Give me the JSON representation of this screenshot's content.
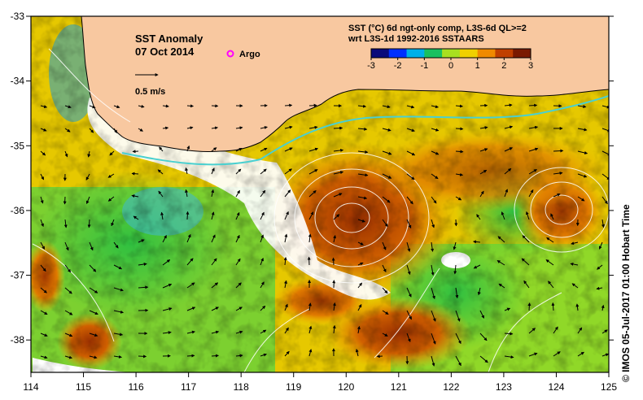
{
  "title": "SST Anomaly",
  "date": "07 Oct 2014",
  "argo_label": "Argo",
  "velocity_scale_label": "0.5 m/s",
  "colorbar": {
    "line1": "SST (°C) 6d ngt-only comp, L3S-6d QL>=2",
    "line2": "wrt L3S-1d 1992-2016 SSTAARS",
    "ticks": [
      "-3",
      "-2",
      "-1",
      "0",
      "1",
      "2",
      "3"
    ],
    "range": [
      -3,
      3
    ],
    "colors": [
      "#0a0a7a",
      "#0030ff",
      "#00b0e8",
      "#19c060",
      "#a8e020",
      "#f0d000",
      "#f08a00",
      "#c04000",
      "#7a1a00"
    ]
  },
  "credit": "© IMOS 05-Jul-2017 01:00 Hobart Time",
  "axes": {
    "lon_ticks": [
      "114",
      "115",
      "116",
      "117",
      "118",
      "119",
      "120",
      "121",
      "122",
      "123",
      "124",
      "125"
    ],
    "lat_ticks": [
      "-33",
      "-34",
      "-35",
      "-36",
      "-37",
      "-38"
    ],
    "lon_range": [
      114,
      125
    ],
    "lat_range": [
      -38.5,
      -33
    ]
  },
  "colors": {
    "land": "#f8c8a0",
    "no_data": "#ffffff",
    "argo": "#ff00ff",
    "current_line": "#4ad0d0"
  }
}
